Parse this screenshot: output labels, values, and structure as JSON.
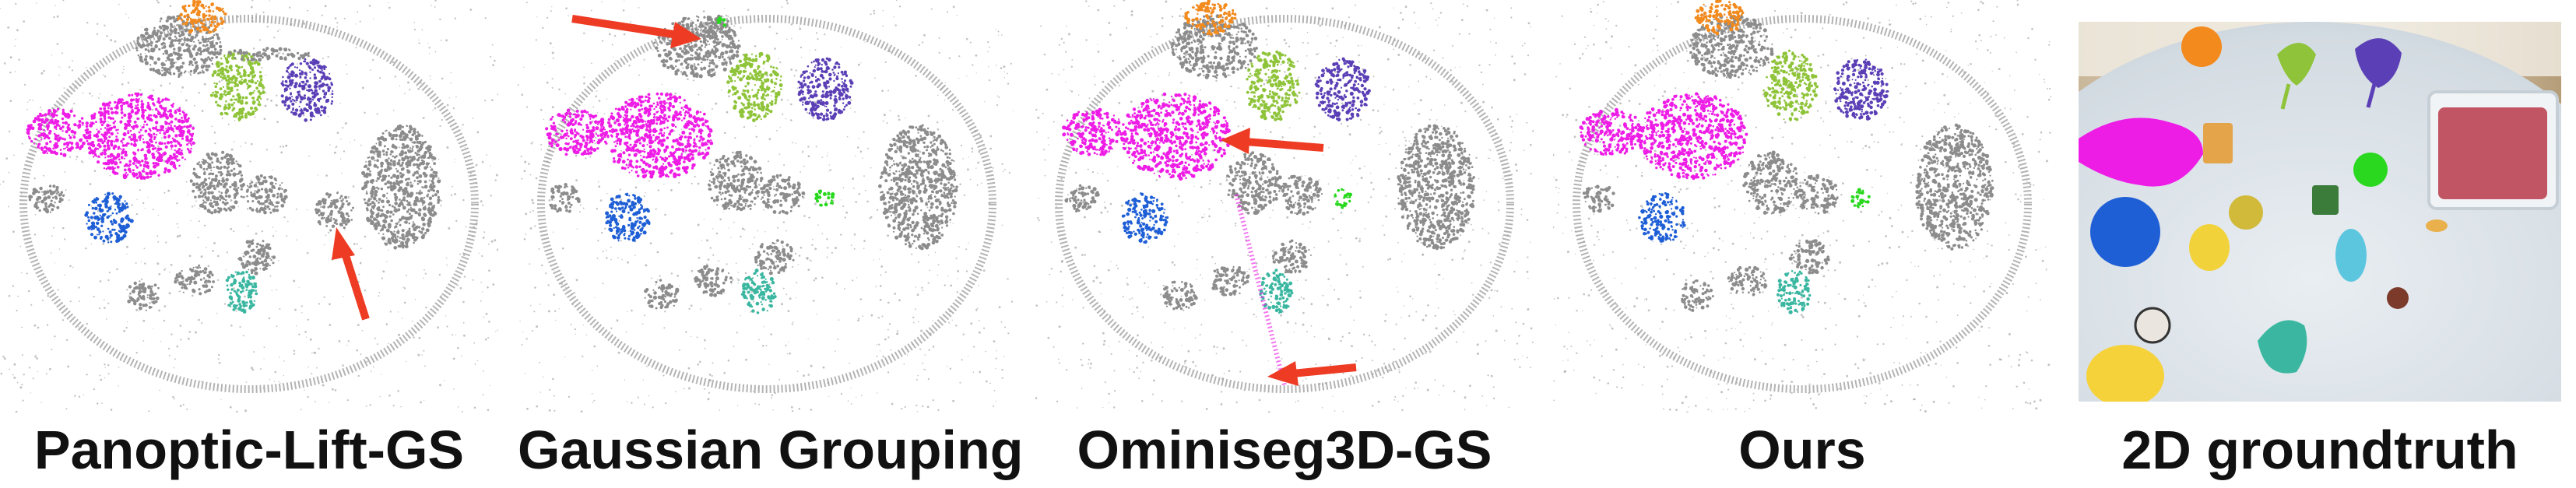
{
  "figure": {
    "panels": [
      {
        "id": "panoptic",
        "caption": "Panoptic-Lift-GS"
      },
      {
        "id": "grouping",
        "caption": "Gaussian Grouping"
      },
      {
        "id": "ominiseg",
        "caption": "Ominiseg3D-GS"
      },
      {
        "id": "ours",
        "caption": "Ours"
      },
      {
        "id": "groundtruth",
        "caption": "2D groundtruth"
      }
    ]
  },
  "colors": {
    "orange": "#f28a1e",
    "lime": "#8fc43a",
    "purple": "#5b3fb6",
    "magenta": "#ee1de6",
    "blue": "#1f5fd6",
    "teal": "#3bb7a1",
    "green": "#29d81f",
    "gray": "#8c8c8c",
    "arrow": "#ee3b24"
  }
}
